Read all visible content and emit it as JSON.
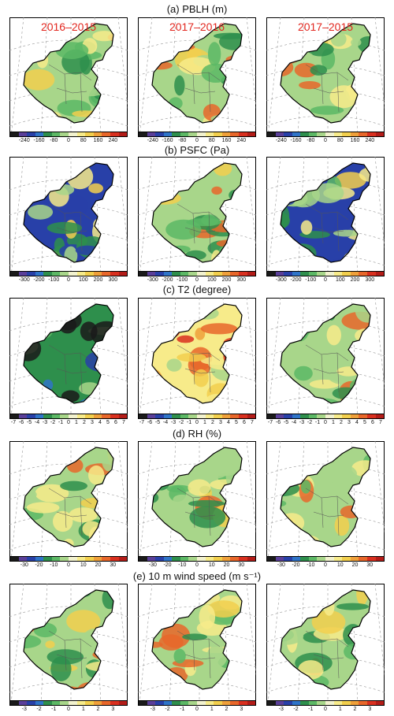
{
  "figure": {
    "columns": [
      "2016–2015",
      "2017–2016",
      "2017–2015"
    ],
    "rows": [
      {
        "title_prefix": "(a)",
        "title": "PBLH (m)",
        "colorbar_ticks": [
          "-240",
          "-160",
          "-80",
          "0",
          "80",
          "160",
          "240"
        ],
        "dominant": [
          "mixed",
          "mixed",
          "mixed"
        ]
      },
      {
        "title_prefix": "(b)",
        "title": "PSFC (Pa)",
        "colorbar_ticks": [
          "-300",
          "-200",
          "-100",
          "0",
          "100",
          "200",
          "300"
        ],
        "dominant": [
          "negative-west",
          "mixed",
          "negative-west"
        ]
      },
      {
        "title_prefix": "(c)",
        "title": "T2 (degree)",
        "colorbar_ticks": [
          "-7",
          "-6",
          "-5",
          "-4",
          "-3",
          "-2",
          "-1",
          "0",
          "1",
          "2",
          "3",
          "4",
          "5",
          "6",
          "7"
        ],
        "dominant": [
          "negative",
          "positive",
          "mixed"
        ]
      },
      {
        "title_prefix": "(d)",
        "title": "RH (%)",
        "colorbar_ticks": [
          "-30",
          "-20",
          "-10",
          "0",
          "10",
          "20",
          "30"
        ],
        "dominant": [
          "mixed",
          "mixed",
          "mixed"
        ]
      },
      {
        "title_prefix": "(e)",
        "title": "10 m wind speed (m s⁻¹)",
        "colorbar_ticks": [
          "-3",
          "-2",
          "-1",
          "0",
          "1",
          "2",
          "3"
        ],
        "dominant": [
          "mixed",
          "mixed",
          "mixed"
        ]
      }
    ],
    "colorbar_colors": [
      "#1a1a1a",
      "#5a3f99",
      "#2840a8",
      "#2f74c8",
      "#2e8f4c",
      "#5cb865",
      "#a8d68a",
      "#f2f2cf",
      "#f7eb8a",
      "#f2cf4d",
      "#efa03a",
      "#e8672a",
      "#d9301f",
      "#b31c18"
    ]
  }
}
